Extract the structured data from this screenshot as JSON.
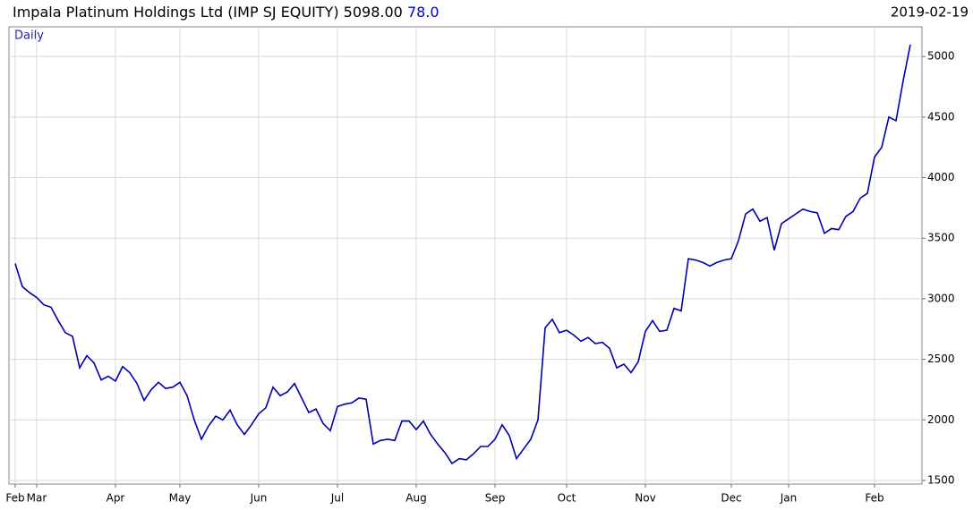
{
  "header": {
    "title": "Impala Platinum Holdings Ltd (IMP SJ EQUITY)",
    "last": "5098.00",
    "change": "78.0",
    "date": "2019-02-19"
  },
  "chart_data": {
    "type": "line",
    "label": "Daily",
    "color": "#0000aa",
    "grid": true,
    "ylim": [
      1470,
      5245
    ],
    "yticks": [
      1500,
      2000,
      2500,
      3000,
      3500,
      4000,
      4500,
      5000
    ],
    "categories": [
      "Feb",
      null,
      null,
      "Mar",
      null,
      null,
      null,
      null,
      null,
      null,
      null,
      null,
      null,
      null,
      "Apr",
      null,
      null,
      null,
      null,
      null,
      null,
      null,
      null,
      "May",
      null,
      null,
      null,
      null,
      null,
      null,
      null,
      null,
      null,
      null,
      "Jun",
      null,
      null,
      null,
      null,
      null,
      null,
      null,
      null,
      null,
      null,
      "Jul",
      null,
      null,
      null,
      null,
      null,
      null,
      null,
      null,
      null,
      null,
      "Aug",
      null,
      null,
      null,
      null,
      null,
      null,
      null,
      null,
      null,
      null,
      "Sep",
      null,
      null,
      null,
      null,
      null,
      null,
      null,
      null,
      null,
      "Oct",
      null,
      null,
      null,
      null,
      null,
      null,
      null,
      null,
      null,
      null,
      "Nov",
      null,
      null,
      null,
      null,
      null,
      null,
      null,
      null,
      null,
      null,
      null,
      "Dec",
      null,
      null,
      null,
      null,
      null,
      null,
      null,
      "Jan",
      null,
      null,
      null,
      null,
      null,
      null,
      null,
      null,
      null,
      null,
      null,
      "Feb",
      null,
      null,
      null,
      null,
      null
    ],
    "values": [
      3290,
      3100,
      3050,
      3010,
      2950,
      2930,
      2820,
      2720,
      2690,
      2430,
      2530,
      2470,
      2330,
      2360,
      2320,
      2440,
      2390,
      2300,
      2160,
      2250,
      2310,
      2260,
      2270,
      2310,
      2200,
      2000,
      1840,
      1950,
      2030,
      2000,
      2080,
      1960,
      1880,
      1960,
      2050,
      2100,
      2270,
      2200,
      2230,
      2300,
      2180,
      2060,
      2090,
      1970,
      1910,
      2110,
      2130,
      2140,
      2180,
      2170,
      1800,
      1830,
      1840,
      1830,
      1990,
      1990,
      1920,
      1990,
      1880,
      1800,
      1730,
      1640,
      1680,
      1670,
      1720,
      1780,
      1780,
      1840,
      1960,
      1870,
      1680,
      1760,
      1840,
      2000,
      2760,
      2830,
      2720,
      2740,
      2700,
      2650,
      2680,
      2630,
      2640,
      2590,
      2430,
      2460,
      2390,
      2480,
      2730,
      2820,
      2730,
      2740,
      2920,
      2900,
      3330,
      3320,
      3300,
      3270,
      3300,
      3320,
      3330,
      3480,
      3700,
      3740,
      3640,
      3670,
      3400,
      3620,
      3660,
      3700,
      3740,
      3720,
      3710,
      3540,
      3580,
      3570,
      3680,
      3720,
      3830,
      3870,
      4170,
      4250,
      4500,
      4470,
      4800,
      5098
    ]
  }
}
